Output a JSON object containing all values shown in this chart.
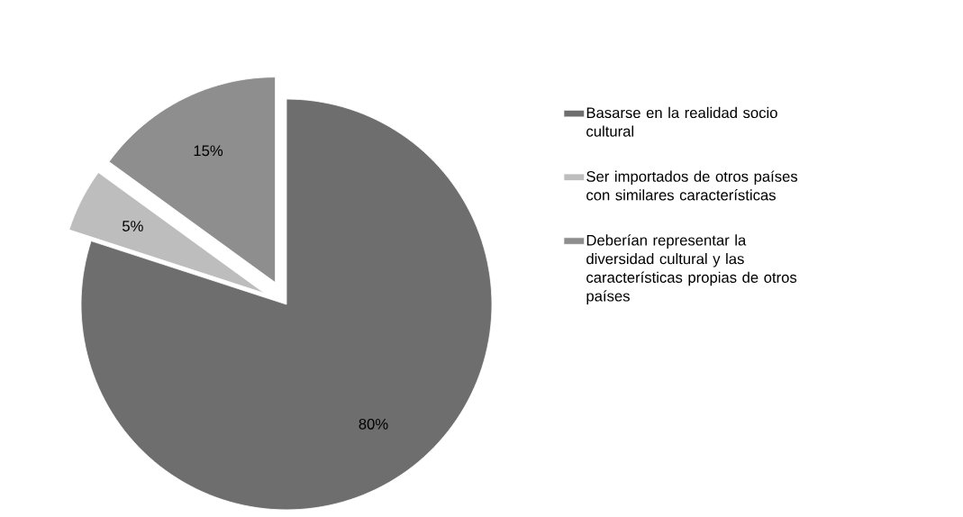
{
  "chart_data": {
    "type": "pie",
    "categories": [
      "Basarse en la realidad socio cultural",
      "Ser importados de otros países con similares características",
      "Deberían representar la diversidad cultural y las características propias de otros países"
    ],
    "values": [
      80,
      5,
      15
    ],
    "colors": [
      "#6e6e6e",
      "#bdbdbd",
      "#8e8e8e"
    ],
    "value_labels": [
      "80%",
      "5%",
      "15%"
    ],
    "legend": "right"
  }
}
